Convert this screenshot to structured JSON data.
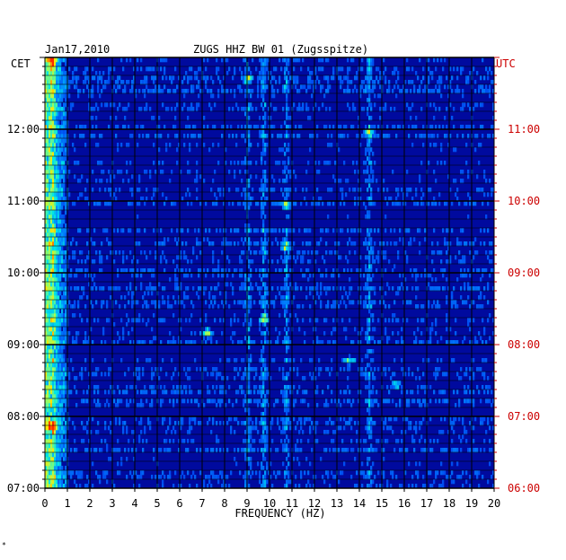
{
  "header": {
    "date": "Jan17,2010",
    "station": "ZUGS HHZ BW 01 (Zugsspitze)"
  },
  "labels": {
    "left_zone": "CET",
    "right_zone": "UTC",
    "x_axis": "FREQUENCY (HZ)"
  },
  "footer_mark": "*",
  "colors": {
    "background": "#000a9e",
    "left_axis": "#000000",
    "right_axis": "#cc0000",
    "palette_low": "#000a9e",
    "palette_high": "#ff2a00"
  },
  "chart_data": {
    "type": "heatmap",
    "title": "ZUGS HHZ BW 01 (Zugsspitze)",
    "date": "Jan17,2010",
    "xlabel": "FREQUENCY (HZ)",
    "xlim": [
      0,
      20
    ],
    "x_ticks": [
      "0",
      "1",
      "2",
      "3",
      "4",
      "5",
      "6",
      "7",
      "8",
      "9",
      "10",
      "11",
      "12",
      "13",
      "14",
      "15",
      "16",
      "17",
      "18",
      "19",
      "20"
    ],
    "y_left_ticks": [
      "07:00",
      "08:00",
      "09:00",
      "10:00",
      "11:00",
      "12:00"
    ],
    "y_right_ticks": [
      "06:00",
      "07:00",
      "08:00",
      "09:00",
      "10:00",
      "11:00"
    ],
    "y_left_zone": "CET",
    "y_right_zone": "UTC",
    "ylim_cet": [
      "07:00",
      "13:00"
    ],
    "grid": true,
    "persistent_lines_hz": [
      0.3,
      9.0,
      9.7,
      10.7,
      14.4
    ],
    "hot_spots": [
      {
        "freq_hz": 7.2,
        "time_cet": "09:08",
        "level": 0.9
      },
      {
        "freq_hz": 9.0,
        "time_cet": "12:40",
        "level": 0.8
      },
      {
        "freq_hz": 10.7,
        "time_cet": "10:55",
        "level": 0.85
      },
      {
        "freq_hz": 10.7,
        "time_cet": "10:20",
        "level": 0.8
      },
      {
        "freq_hz": 14.4,
        "time_cet": "11:55",
        "level": 0.8
      },
      {
        "freq_hz": 15.6,
        "time_cet": "08:25",
        "level": 0.75
      },
      {
        "freq_hz": 13.5,
        "time_cet": "08:45",
        "level": 0.7
      },
      {
        "freq_hz": 9.7,
        "time_cet": "09:20",
        "level": 0.75
      },
      {
        "freq_hz": 0.3,
        "time_cet": "07:50",
        "level": 1.0
      },
      {
        "freq_hz": 0.3,
        "time_cet": "12:55",
        "level": 1.0
      }
    ]
  }
}
